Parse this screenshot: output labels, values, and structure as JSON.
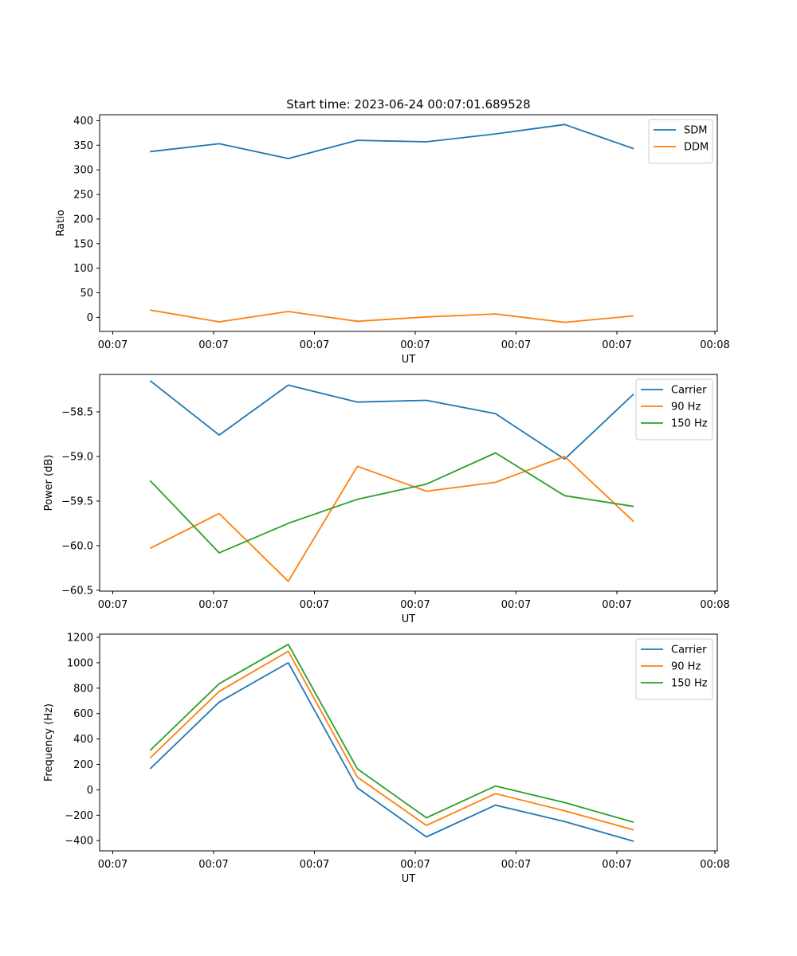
{
  "figure_title": "Start time: 2023-06-24 00:07:01.689528",
  "colors": {
    "blue": "#1f77b4",
    "orange": "#ff7f0e",
    "green": "#2ca02c"
  },
  "x_tick_labels": [
    "00:07",
    "00:07",
    "00:07",
    "00:07",
    "00:07",
    "00:07",
    "00:08"
  ],
  "chart_data": [
    {
      "type": "line",
      "title": "Start time: 2023-06-24 00:07:01.689528",
      "xlabel": "UT",
      "ylabel": "Ratio",
      "x": [
        1,
        2,
        3,
        4,
        5,
        6,
        7,
        8
      ],
      "xlim": [
        0.27,
        9.21
      ],
      "ylim": [
        -28.5,
        412
      ],
      "yticks": [
        0,
        50,
        100,
        150,
        200,
        250,
        300,
        350,
        400
      ],
      "ytick_labels": [
        "0",
        "50",
        "100",
        "150",
        "200",
        "250",
        "300",
        "350",
        "400"
      ],
      "legend": "top-right",
      "series": [
        {
          "name": "SDM",
          "color": "#1f77b4",
          "values": [
            337,
            353,
            323,
            360,
            357,
            373,
            392,
            343
          ]
        },
        {
          "name": "DDM",
          "color": "#ff7f0e",
          "values": [
            15,
            -9,
            12,
            -8,
            1,
            7,
            -10,
            3
          ]
        }
      ]
    },
    {
      "type": "line",
      "xlabel": "UT",
      "ylabel": "Power (dB)",
      "x": [
        1,
        2,
        3,
        4,
        5,
        6,
        7,
        8
      ],
      "xlim": [
        0.27,
        9.21
      ],
      "ylim": [
        -60.51,
        -58.08
      ],
      "yticks": [
        -60.5,
        -60.0,
        -59.5,
        -59.0,
        -58.5
      ],
      "ytick_labels": [
        "−60.5",
        "−60.0",
        "−59.5",
        "−59.0",
        "−58.5"
      ],
      "legend": "top-right",
      "series": [
        {
          "name": "Carrier",
          "color": "#1f77b4",
          "values": [
            -58.15,
            -58.76,
            -58.2,
            -58.39,
            -58.37,
            -58.52,
            -59.03,
            -58.3
          ]
        },
        {
          "name": "90 Hz",
          "color": "#ff7f0e",
          "values": [
            -60.03,
            -59.64,
            -60.4,
            -59.11,
            -59.39,
            -59.29,
            -59.0,
            -59.73
          ]
        },
        {
          "name": "150 Hz",
          "color": "#2ca02c",
          "values": [
            -59.27,
            -60.08,
            -59.75,
            -59.48,
            -59.31,
            -58.96,
            -59.44,
            -59.56
          ]
        }
      ]
    },
    {
      "type": "line",
      "xlabel": "UT",
      "ylabel": "Frequency (Hz)",
      "x": [
        1,
        2,
        3,
        4,
        5,
        6,
        7,
        8
      ],
      "xlim": [
        0.27,
        9.21
      ],
      "ylim": [
        -480,
        1225
      ],
      "yticks": [
        -400,
        -200,
        0,
        200,
        400,
        600,
        800,
        1000,
        1200
      ],
      "ytick_labels": [
        "−400",
        "−200",
        "0",
        "200",
        "400",
        "600",
        "800",
        "1000",
        "1200"
      ],
      "legend": "top-right",
      "series": [
        {
          "name": "Carrier",
          "color": "#1f77b4",
          "values": [
            165,
            690,
            1000,
            15,
            -370,
            -120,
            -250,
            -405
          ]
        },
        {
          "name": "90 Hz",
          "color": "#ff7f0e",
          "values": [
            250,
            775,
            1090,
            100,
            -280,
            -30,
            -165,
            -315
          ]
        },
        {
          "name": "150 Hz",
          "color": "#2ca02c",
          "values": [
            310,
            835,
            1145,
            165,
            -220,
            30,
            -100,
            -255
          ]
        }
      ]
    }
  ]
}
